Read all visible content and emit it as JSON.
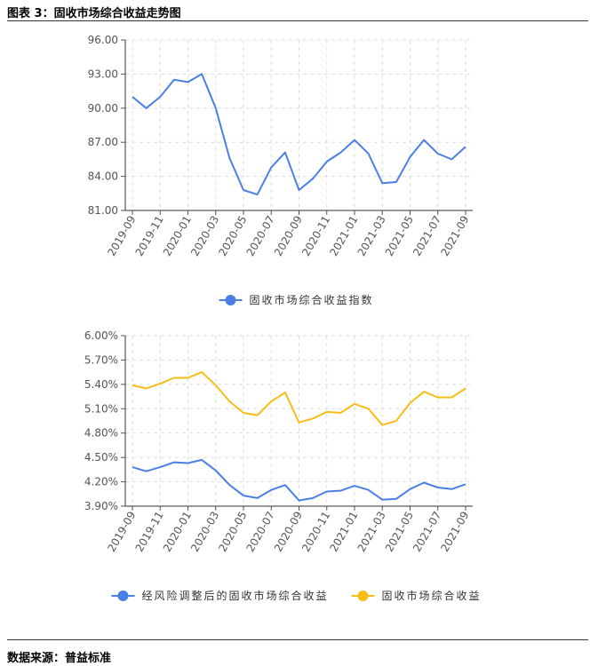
{
  "header": {
    "title": "图表 3：固收市场综合收益走势图"
  },
  "footer": {
    "source": "数据来源：普益标准"
  },
  "chart_data": [
    {
      "type": "line",
      "x": [
        "2019-09",
        "2019-10",
        "2019-11",
        "2019-12",
        "2020-01",
        "2020-02",
        "2020-03",
        "2020-04",
        "2020-05",
        "2020-06",
        "2020-07",
        "2020-08",
        "2020-09",
        "2020-10",
        "2020-11",
        "2020-12",
        "2021-01",
        "2021-02",
        "2021-03",
        "2021-04",
        "2021-05",
        "2021-06",
        "2021-07",
        "2021-08",
        "2021-09"
      ],
      "x_tick_labels": [
        "2019-09",
        "2019-11",
        "2020-01",
        "2020-03",
        "2020-05",
        "2020-07",
        "2020-09",
        "2020-11",
        "2021-01",
        "2021-03",
        "2021-05",
        "2021-07",
        "2021-09"
      ],
      "ylim": [
        81,
        96
      ],
      "y_tick_labels": [
        "81.00",
        "84.00",
        "87.00",
        "90.00",
        "93.00",
        "96.00"
      ],
      "grid": true,
      "legend_position": "bottom-center",
      "series": [
        {
          "name": "固收市场综合收益指数",
          "color": "#4a7fe5",
          "values": [
            91.0,
            90.0,
            91.0,
            92.5,
            92.3,
            93.0,
            90.0,
            85.6,
            82.8,
            82.4,
            84.8,
            86.1,
            82.8,
            83.8,
            85.3,
            86.1,
            87.2,
            86.0,
            83.4,
            83.5,
            85.7,
            87.2,
            86.0,
            85.5,
            86.6
          ]
        }
      ]
    },
    {
      "type": "line",
      "x": [
        "2019-09",
        "2019-10",
        "2019-11",
        "2019-12",
        "2020-01",
        "2020-02",
        "2020-03",
        "2020-04",
        "2020-05",
        "2020-06",
        "2020-07",
        "2020-08",
        "2020-09",
        "2020-10",
        "2020-11",
        "2020-12",
        "2021-01",
        "2021-02",
        "2021-03",
        "2021-04",
        "2021-05",
        "2021-06",
        "2021-07",
        "2021-08",
        "2021-09"
      ],
      "x_tick_labels": [
        "2019-09",
        "2019-11",
        "2020-01",
        "2020-03",
        "2020-05",
        "2020-07",
        "2020-09",
        "2020-11",
        "2021-01",
        "2021-03",
        "2021-05",
        "2021-07",
        "2021-09"
      ],
      "ylim": [
        3.9,
        6.0
      ],
      "y_tick_labels": [
        "3.90%",
        "4.20%",
        "4.50%",
        "4.80%",
        "5.10%",
        "5.40%",
        "5.70%",
        "6.00%"
      ],
      "grid": true,
      "legend_position": "bottom-center",
      "series": [
        {
          "name": "经风险调整后的固收市场综合收益",
          "color": "#4a7fe5",
          "values": [
            4.38,
            4.33,
            4.38,
            4.44,
            4.43,
            4.47,
            4.34,
            4.16,
            4.03,
            4.0,
            4.1,
            4.16,
            3.97,
            4.0,
            4.08,
            4.09,
            4.15,
            4.1,
            3.98,
            3.99,
            4.11,
            4.19,
            4.13,
            4.11,
            4.17
          ]
        },
        {
          "name": "固收市场综合收益",
          "color": "#f6bd16",
          "values": [
            5.39,
            5.35,
            5.41,
            5.48,
            5.48,
            5.55,
            5.39,
            5.19,
            5.05,
            5.02,
            5.19,
            5.3,
            4.93,
            4.98,
            5.06,
            5.05,
            5.16,
            5.1,
            4.9,
            4.95,
            5.17,
            5.31,
            5.24,
            5.24,
            5.35
          ]
        }
      ]
    }
  ]
}
